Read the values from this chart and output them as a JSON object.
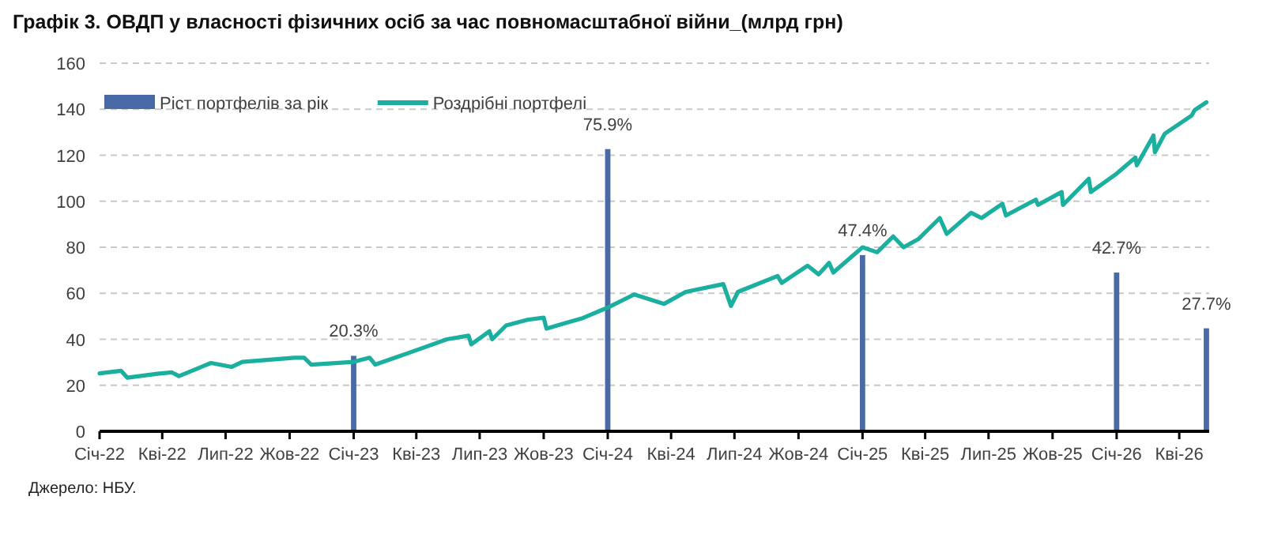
{
  "chart_data": {
    "type": "line",
    "title": "Графік 3. ОВДП у власності фізичних осіб за час повномасштабної війни_(млрд грн)",
    "annotations": [
      "Джерело: НБУ."
    ],
    "xlim": [
      "2022-01-01",
      "2026-05-14"
    ],
    "xticks": [
      {
        "value": "2022-01-01",
        "label": "Січ-22"
      },
      {
        "value": "2022-04-01",
        "label": "Кві-22"
      },
      {
        "value": "2022-07-01",
        "label": "Лип-22"
      },
      {
        "value": "2022-10-01",
        "label": "Жов-22"
      },
      {
        "value": "2023-01-01",
        "label": "Січ-23"
      },
      {
        "value": "2023-04-01",
        "label": "Кві-23"
      },
      {
        "value": "2023-07-01",
        "label": "Лип-23"
      },
      {
        "value": "2023-10-01",
        "label": "Жов-23"
      },
      {
        "value": "2024-01-01",
        "label": "Січ-24"
      },
      {
        "value": "2024-04-01",
        "label": "Кві-24"
      },
      {
        "value": "2024-07-01",
        "label": "Лип-24"
      },
      {
        "value": "2024-10-01",
        "label": "Жов-24"
      },
      {
        "value": "2025-01-01",
        "label": "Січ-25"
      },
      {
        "value": "2025-04-01",
        "label": "Кві-25"
      },
      {
        "value": "2025-07-01",
        "label": "Лип-25"
      },
      {
        "value": "2025-10-01",
        "label": "Жов-25"
      },
      {
        "value": "2026-01-01",
        "label": "Січ-26"
      },
      {
        "value": "2026-04-01",
        "label": "Кві-26"
      }
    ],
    "ylim": [
      0,
      160
    ],
    "y2lim": [
      0,
      99
    ],
    "yticks": [
      0,
      20,
      40,
      60,
      80,
      100,
      120,
      140,
      160
    ],
    "grid": "y",
    "legend": "top left",
    "series": [
      {
        "name": "Ріст портфелів за рік",
        "type": "bar",
        "color": "#4a6aa5",
        "x": [
          "2023-01-01",
          "2024-01-01",
          "2025-01-01",
          "2026-01-01",
          "2026-05-10"
        ],
        "axis": "y2",
        "values": [
          20.3,
          75.9,
          47.4,
          42.7,
          27.7
        ],
        "value_labels": [
          "20.3%",
          "75.9%",
          "47.4%",
          "42.7%",
          "27.7%"
        ]
      },
      {
        "name": "Роздрібні портфелі",
        "color": "#1aaf9e",
        "x": [
          "2022-01-01",
          "2022-02-01",
          "2022-02-10",
          "2022-03-25",
          "2022-04-15",
          "2022-04-25",
          "2022-06-10",
          "2022-07-10",
          "2022-07-25",
          "2022-10-08",
          "2022-10-22",
          "2022-11-01",
          "2023-01-01",
          "2023-01-24",
          "2023-02-01",
          "2023-04-08",
          "2023-05-15",
          "2023-06-15",
          "2023-06-19",
          "2023-07-15",
          "2023-07-19",
          "2023-08-08",
          "2023-09-08",
          "2023-10-01",
          "2023-10-05",
          "2023-11-01",
          "2023-11-24",
          "2024-01-01",
          "2024-02-08",
          "2024-03-22",
          "2024-04-22",
          "2024-06-15",
          "2024-06-26",
          "2024-07-06",
          "2024-09-01",
          "2024-09-07",
          "2024-10-14",
          "2024-10-30",
          "2024-11-14",
          "2024-11-20",
          "2025-01-01",
          "2025-01-22",
          "2025-02-14",
          "2025-03-01",
          "2025-03-22",
          "2025-04-22",
          "2025-05-02",
          "2025-06-06",
          "2025-06-21",
          "2025-07-21",
          "2025-07-26",
          "2025-09-07",
          "2025-09-10",
          "2025-10-14",
          "2025-10-16",
          "2025-11-22",
          "2025-11-25",
          "2026-01-01",
          "2026-01-28",
          "2026-01-30",
          "2026-02-23",
          "2026-02-25",
          "2026-03-11",
          "2026-04-19",
          "2026-04-23",
          "2026-05-10"
        ],
        "values": [
          25.2,
          26.3,
          23.3,
          25,
          25.6,
          24,
          29.7,
          28,
          30.2,
          32,
          32,
          29,
          30.2,
          32,
          29,
          36,
          40,
          41.6,
          37.8,
          43.5,
          40,
          46,
          48.5,
          49.4,
          44.6,
          47,
          49,
          53.8,
          59.5,
          55.4,
          60.6,
          64,
          54.5,
          60.6,
          67.5,
          64.5,
          72,
          68.2,
          73.2,
          69,
          80,
          77.8,
          84.7,
          80,
          83.5,
          92.7,
          85.8,
          95,
          92.7,
          98.9,
          93.8,
          100.7,
          98.4,
          104,
          98.4,
          109.8,
          104,
          112,
          119,
          115.6,
          128.6,
          121.3,
          129.3,
          137.3,
          139.6,
          143
        ]
      }
    ]
  }
}
